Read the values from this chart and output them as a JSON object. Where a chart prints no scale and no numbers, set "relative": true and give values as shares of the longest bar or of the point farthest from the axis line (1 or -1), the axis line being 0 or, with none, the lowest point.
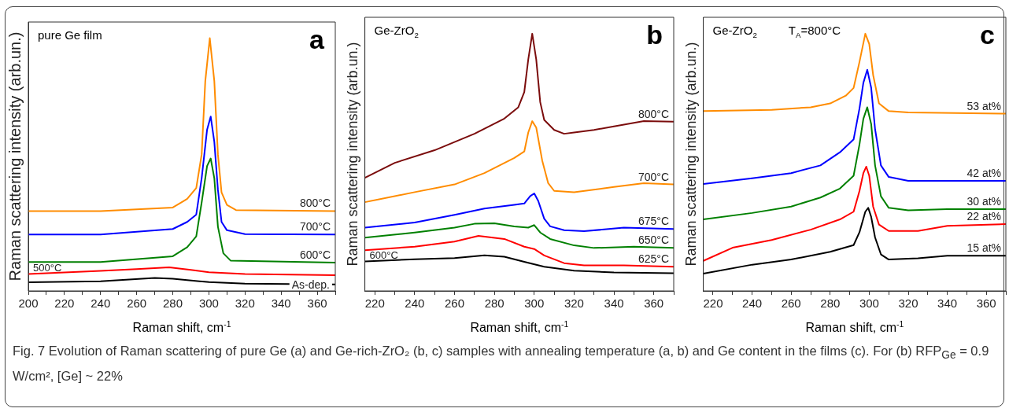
{
  "chart_data": [
    {
      "type": "line",
      "title": "a",
      "xlabel": "Raman shift, cm$^{-1}$",
      "ylabel": "Raman scattering intensity (arb.un.)",
      "relative": true,
      "marker": "none",
      "line_style": "solid",
      "grid": false,
      "xlim": [
        200,
        370
      ],
      "xticks": [
        200,
        {
          "value": 210,
          "label": null
        },
        220,
        {
          "value": 230,
          "label": null
        },
        240,
        {
          "value": 250,
          "label": null
        },
        260,
        {
          "value": 270,
          "label": null
        },
        280,
        {
          "value": 290,
          "label": null
        },
        300,
        {
          "value": 310,
          "label": null
        },
        320,
        {
          "value": 330,
          "label": null
        },
        340,
        {
          "value": 350,
          "label": null
        },
        360,
        {
          "value": 370,
          "label": null
        }
      ],
      "annotations": [
        "pure Ge film"
      ],
      "series": [
        {
          "name": "800°C",
          "color": "#ff8c00",
          "x": [
            200,
            240,
            280,
            288,
            293,
            296,
            298,
            300.5,
            303,
            305,
            307,
            310,
            315,
            370
          ],
          "values": [
            0.316,
            0.316,
            0.33,
            0.364,
            0.407,
            0.54,
            0.83,
            1.0,
            0.83,
            0.54,
            0.39,
            0.34,
            0.32,
            0.316
          ]
        },
        {
          "name": "700°C",
          "color": "#0000ff",
          "x": [
            200,
            240,
            280,
            288,
            293,
            296,
            299,
            301,
            303,
            305,
            307,
            310,
            320,
            370
          ],
          "values": [
            0.223,
            0.223,
            0.245,
            0.273,
            0.302,
            0.446,
            0.638,
            0.69,
            0.59,
            0.4,
            0.273,
            0.24,
            0.225,
            0.223
          ]
        },
        {
          "name": "600°C",
          "color": "#008000",
          "x": [
            200,
            240,
            280,
            288,
            293,
            296,
            299,
            301,
            303,
            305,
            308,
            312,
            370
          ],
          "values": [
            0.114,
            0.114,
            0.137,
            0.173,
            0.216,
            0.35,
            0.494,
            0.524,
            0.446,
            0.254,
            0.149,
            0.12,
            0.112
          ]
        },
        {
          "name": "500°C",
          "color": "#ff0000",
          "x": [
            200,
            240,
            260,
            278,
            290,
            300,
            320,
            370
          ],
          "values": [
            0.067,
            0.079,
            0.086,
            0.093,
            0.083,
            0.074,
            0.067,
            0.062
          ]
        },
        {
          "name": "As-dep.",
          "color": "#000000",
          "x": [
            200,
            240,
            270,
            280,
            300,
            320,
            370
          ],
          "values": [
            0.034,
            0.038,
            0.051,
            0.048,
            0.035,
            0.029,
            0.026
          ]
        }
      ]
    },
    {
      "type": "line",
      "title": "b",
      "xlabel": "Raman shift, cm$^{-1}$",
      "ylabel": "Raman scattering intensity (arb.un.)",
      "relative": true,
      "marker": "none",
      "line_style": "solid",
      "grid": false,
      "xlim": [
        215,
        370
      ],
      "xticks": [
        220,
        {
          "value": 230,
          "label": null
        },
        240,
        {
          "value": 250,
          "label": null
        },
        260,
        {
          "value": 270,
          "label": null
        },
        280,
        {
          "value": 290,
          "label": null
        },
        300,
        {
          "value": 310,
          "label": null
        },
        320,
        {
          "value": 330,
          "label": null
        },
        340,
        {
          "value": 350,
          "label": null
        },
        360,
        {
          "value": 370,
          "label": null
        }
      ],
      "annotations": [
        "Ge-ZrO$_{2}$"
      ],
      "series": [
        {
          "name": "800°C",
          "color": "#7b0c0c",
          "x": [
            215,
            230,
            250,
            270,
            285,
            292,
            295,
            297,
            299,
            301,
            303,
            305,
            310,
            315,
            320,
            330,
            340,
            355,
            370
          ],
          "values": [
            0.44,
            0.498,
            0.547,
            0.611,
            0.67,
            0.714,
            0.773,
            0.9,
            1.0,
            0.9,
            0.734,
            0.665,
            0.626,
            0.611,
            0.616,
            0.626,
            0.64,
            0.66,
            0.658
          ]
        },
        {
          "name": "700°C",
          "color": "#ff8c00",
          "x": [
            215,
            240,
            260,
            275,
            290,
            295,
            297,
            299,
            301,
            304,
            307,
            310,
            320,
            340,
            355,
            370
          ],
          "values": [
            0.345,
            0.384,
            0.414,
            0.458,
            0.517,
            0.542,
            0.616,
            0.66,
            0.635,
            0.507,
            0.419,
            0.389,
            0.384,
            0.404,
            0.419,
            0.414
          ]
        },
        {
          "name": "675°C",
          "color": "#0000ff",
          "x": [
            215,
            240,
            260,
            275,
            290,
            295,
            298,
            300,
            302,
            305,
            308,
            315,
            325,
            345,
            370
          ],
          "values": [
            0.246,
            0.266,
            0.296,
            0.32,
            0.335,
            0.34,
            0.369,
            0.379,
            0.35,
            0.281,
            0.251,
            0.236,
            0.232,
            0.246,
            0.241
          ]
        },
        {
          "name": "650°C",
          "color": "#008000",
          "x": [
            215,
            240,
            260,
            270,
            280,
            290,
            297,
            300,
            303,
            308,
            320,
            330,
            350,
            370
          ],
          "values": [
            0.207,
            0.227,
            0.246,
            0.261,
            0.263,
            0.251,
            0.246,
            0.256,
            0.227,
            0.202,
            0.177,
            0.167,
            0.172,
            0.167
          ]
        },
        {
          "name": "625°C",
          "color": "#ff0000",
          "x": [
            215,
            240,
            260,
            272,
            285,
            295,
            300,
            305,
            315,
            325,
            345,
            370
          ],
          "values": [
            0.158,
            0.172,
            0.192,
            0.214,
            0.202,
            0.172,
            0.163,
            0.138,
            0.108,
            0.099,
            0.099,
            0.094
          ]
        },
        {
          "name": "600°C",
          "color": "#000000",
          "x": [
            215,
            240,
            260,
            275,
            285,
            295,
            305,
            320,
            340,
            370
          ],
          "values": [
            0.115,
            0.123,
            0.128,
            0.138,
            0.133,
            0.113,
            0.094,
            0.079,
            0.072,
            0.069
          ]
        }
      ]
    },
    {
      "type": "line",
      "title": "c",
      "xlabel": "Raman shift, cm$^{-1}$",
      "ylabel": "Raman scattering intensity (arb.un.)",
      "relative": true,
      "marker": "none",
      "line_style": "solid",
      "grid": false,
      "xlim": [
        215,
        370
      ],
      "xticks": [
        220,
        {
          "value": 230,
          "label": null
        },
        240,
        {
          "value": 250,
          "label": null
        },
        260,
        {
          "value": 270,
          "label": null
        },
        280,
        {
          "value": 290,
          "label": null
        },
        300,
        {
          "value": 310,
          "label": null
        },
        320,
        {
          "value": 330,
          "label": null
        },
        340,
        {
          "value": 350,
          "label": null
        },
        360,
        {
          "value": 370,
          "label": null
        }
      ],
      "annotations": [
        "Ge-ZrO$_{2}$",
        "T$_{A}$=800°C",
        "Fig. 7 Evolution of Raman scattering of pure Ge (a) and Ge-rich-ZrO₂ (b, c) samples with annealing temperature (a, b) and Ge content in the films (c). For (b) RFP$_{Ge}$ = 0.9 W/cm², [Ge] ~ 22%"
      ],
      "series": [
        {
          "name": "53 at%",
          "color": "#ff8c00",
          "x": [
            215,
            250,
            270,
            280,
            288,
            292,
            295,
            298,
            300,
            302,
            305,
            310,
            320,
            370
          ],
          "values": [
            0.699,
            0.704,
            0.714,
            0.729,
            0.759,
            0.789,
            0.89,
            1.0,
            0.96,
            0.84,
            0.729,
            0.699,
            0.694,
            0.689
          ]
        },
        {
          "name": "42 at%",
          "color": "#0000ff",
          "x": [
            215,
            240,
            260,
            275,
            285,
            292,
            295,
            297,
            299,
            301,
            303,
            306,
            310,
            320,
            370
          ],
          "values": [
            0.416,
            0.438,
            0.458,
            0.488,
            0.539,
            0.589,
            0.709,
            0.809,
            0.86,
            0.79,
            0.629,
            0.488,
            0.443,
            0.428,
            0.428
          ]
        },
        {
          "name": "30 at%",
          "color": "#008000",
          "x": [
            215,
            240,
            260,
            275,
            285,
            292,
            295,
            297,
            299,
            301,
            303,
            306,
            310,
            320,
            340,
            370
          ],
          "values": [
            0.278,
            0.303,
            0.328,
            0.363,
            0.398,
            0.448,
            0.569,
            0.669,
            0.714,
            0.649,
            0.488,
            0.368,
            0.323,
            0.313,
            0.318,
            0.318
          ]
        },
        {
          "name": "22 at%",
          "color": "#ff0000",
          "x": [
            215,
            230,
            250,
            270,
            285,
            292,
            295,
            297,
            298.5,
            300,
            302,
            305,
            310,
            325,
            340,
            370
          ],
          "values": [
            0.117,
            0.168,
            0.198,
            0.238,
            0.278,
            0.308,
            0.388,
            0.458,
            0.483,
            0.448,
            0.328,
            0.258,
            0.233,
            0.233,
            0.253,
            0.26
          ]
        },
        {
          "name": "15 at%",
          "color": "#000000",
          "x": [
            215,
            240,
            260,
            280,
            292,
            295,
            298,
            299.5,
            301,
            303,
            306,
            310,
            325,
            340,
            370
          ],
          "values": [
            0.067,
            0.102,
            0.122,
            0.152,
            0.178,
            0.228,
            0.308,
            0.323,
            0.288,
            0.208,
            0.142,
            0.122,
            0.127,
            0.137,
            0.137
          ]
        }
      ]
    }
  ]
}
